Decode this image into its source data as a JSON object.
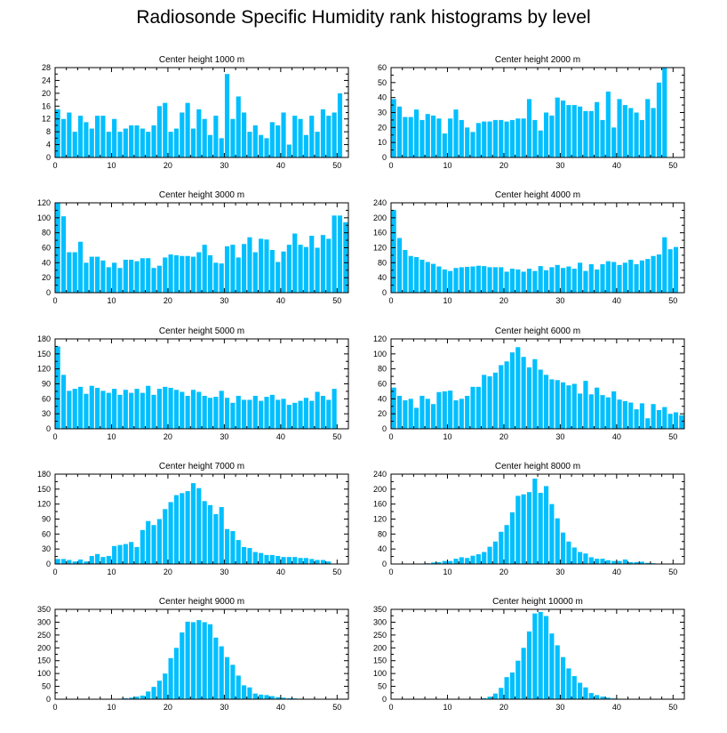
{
  "title": "Radiosonde Specific Humidity rank histograms by level",
  "colors": {
    "bar": "#00bfff",
    "axis": "#000000"
  },
  "chart_data": [
    {
      "type": "bar",
      "title": "Center height 1000 m",
      "xlim": [
        0,
        52
      ],
      "ylim": [
        0,
        28
      ],
      "xticks": [
        0,
        10,
        20,
        30,
        40,
        50
      ],
      "yticks": [
        0,
        4,
        8,
        12,
        16,
        20,
        24,
        28
      ],
      "values": [
        15,
        12,
        14,
        8,
        13,
        11,
        9,
        13,
        13,
        8,
        12,
        8,
        9,
        10,
        10,
        9,
        8,
        10,
        16,
        17,
        8,
        9,
        14,
        17,
        9,
        15,
        12,
        7,
        13,
        6,
        26,
        12,
        19,
        14,
        8,
        10,
        7,
        6,
        11,
        10,
        14,
        4,
        13,
        12,
        7,
        13,
        8,
        15,
        13,
        14,
        20
      ]
    },
    {
      "type": "bar",
      "title": "Center height 2000 m",
      "xlim": [
        0,
        52
      ],
      "ylim": [
        0,
        60
      ],
      "xticks": [
        0,
        10,
        20,
        30,
        40,
        50
      ],
      "yticks": [
        0,
        10,
        20,
        30,
        40,
        50,
        60
      ],
      "values": [
        39,
        34,
        27,
        27,
        32,
        25,
        29,
        28,
        26,
        16,
        26,
        32,
        25,
        20,
        17,
        23,
        24,
        24,
        25,
        25,
        24,
        25,
        26,
        26,
        39,
        25,
        18,
        30,
        28,
        40,
        38,
        35,
        35,
        34,
        31,
        31,
        37,
        25,
        44,
        20,
        39,
        35,
        33,
        30,
        25,
        39,
        33,
        50,
        60
      ]
    },
    {
      "type": "bar",
      "title": "Center height 3000 m",
      "xlim": [
        0,
        52
      ],
      "ylim": [
        0,
        120
      ],
      "xticks": [
        0,
        10,
        20,
        30,
        40,
        50
      ],
      "yticks": [
        0,
        20,
        40,
        60,
        80,
        100,
        120
      ],
      "values": [
        120,
        102,
        54,
        54,
        68,
        40,
        48,
        48,
        43,
        34,
        40,
        33,
        44,
        44,
        42,
        46,
        46,
        33,
        36,
        47,
        51,
        50,
        49,
        49,
        48,
        54,
        64,
        50,
        40,
        39,
        62,
        64,
        47,
        65,
        74,
        54,
        72,
        71,
        57,
        41,
        55,
        64,
        79,
        64,
        61,
        76,
        60,
        77,
        72,
        103,
        103,
        94
      ]
    },
    {
      "type": "bar",
      "title": "Center height 4000 m",
      "xlim": [
        0,
        52
      ],
      "ylim": [
        0,
        240
      ],
      "xticks": [
        0,
        10,
        20,
        30,
        40,
        50
      ],
      "yticks": [
        0,
        40,
        80,
        120,
        160,
        200,
        240
      ],
      "values": [
        221,
        146,
        114,
        98,
        95,
        88,
        82,
        77,
        70,
        62,
        58,
        66,
        68,
        69,
        70,
        72,
        71,
        68,
        68,
        68,
        56,
        64,
        62,
        56,
        64,
        58,
        71,
        60,
        68,
        74,
        66,
        70,
        64,
        80,
        58,
        76,
        62,
        76,
        84,
        82,
        74,
        80,
        88,
        76,
        86,
        90,
        98,
        102,
        148,
        116,
        122
      ]
    },
    {
      "type": "bar",
      "title": "Center height 5000 m",
      "xlim": [
        0,
        52
      ],
      "ylim": [
        0,
        180
      ],
      "xticks": [
        0,
        10,
        20,
        30,
        40,
        50
      ],
      "yticks": [
        0,
        30,
        60,
        90,
        120,
        150,
        180
      ],
      "values": [
        165,
        108,
        76,
        80,
        84,
        70,
        86,
        82,
        76,
        72,
        80,
        68,
        78,
        72,
        80,
        72,
        86,
        68,
        80,
        84,
        82,
        78,
        74,
        66,
        78,
        74,
        66,
        62,
        64,
        76,
        62,
        52,
        66,
        58,
        58,
        66,
        56,
        64,
        68,
        58,
        60,
        48,
        52,
        56,
        62,
        56,
        74,
        66,
        58,
        80
      ]
    },
    {
      "type": "bar",
      "title": "Center height 6000 m",
      "xlim": [
        0,
        52
      ],
      "ylim": [
        0,
        120
      ],
      "xticks": [
        0,
        10,
        20,
        30,
        40,
        50
      ],
      "yticks": [
        0,
        20,
        40,
        60,
        80,
        100,
        120
      ],
      "values": [
        55,
        44,
        38,
        40,
        28,
        44,
        40,
        33,
        49,
        50,
        51,
        38,
        40,
        44,
        56,
        56,
        72,
        70,
        75,
        85,
        90,
        102,
        109,
        96,
        82,
        93,
        79,
        72,
        66,
        65,
        62,
        58,
        60,
        47,
        64,
        46,
        55,
        45,
        42,
        50,
        39,
        37,
        35,
        26,
        34,
        14,
        33,
        25,
        29,
        20,
        22,
        18
      ]
    },
    {
      "type": "bar",
      "title": "Center height 7000 m",
      "xlim": [
        0,
        52
      ],
      "ylim": [
        0,
        180
      ],
      "xticks": [
        0,
        10,
        20,
        30,
        40,
        50
      ],
      "yticks": [
        0,
        30,
        60,
        90,
        120,
        150,
        180
      ],
      "values": [
        10,
        10,
        8,
        5,
        9,
        5,
        16,
        20,
        14,
        16,
        36,
        38,
        40,
        44,
        34,
        68,
        86,
        78,
        90,
        110,
        124,
        138,
        142,
        146,
        162,
        152,
        126,
        118,
        100,
        114,
        70,
        66,
        48,
        34,
        32,
        24,
        22,
        18,
        18,
        16,
        14,
        14,
        14,
        12,
        12,
        10,
        8,
        8,
        5
      ]
    },
    {
      "type": "bar",
      "title": "Center height 8000 m",
      "xlim": [
        0,
        52
      ],
      "ylim": [
        0,
        240
      ],
      "xticks": [
        0,
        10,
        20,
        30,
        40,
        50
      ],
      "yticks": [
        0,
        40,
        80,
        120,
        160,
        200,
        240
      ],
      "values": [
        0,
        0,
        0,
        0,
        0,
        1,
        2,
        4,
        5,
        8,
        8,
        14,
        18,
        16,
        22,
        26,
        32,
        46,
        60,
        86,
        104,
        138,
        182,
        186,
        192,
        228,
        190,
        208,
        160,
        122,
        84,
        60,
        44,
        32,
        28,
        18,
        14,
        14,
        10,
        8,
        8,
        12,
        5,
        5,
        6,
        3,
        2
      ]
    },
    {
      "type": "bar",
      "title": "Center height 9000 m",
      "xlim": [
        0,
        52
      ],
      "ylim": [
        0,
        350
      ],
      "xticks": [
        0,
        10,
        20,
        30,
        40,
        50
      ],
      "yticks": [
        0,
        50,
        100,
        150,
        200,
        250,
        300,
        350
      ],
      "values": [
        0,
        0,
        0,
        0,
        0,
        0,
        0,
        0,
        0,
        0,
        0,
        2,
        4,
        6,
        10,
        14,
        30,
        48,
        72,
        100,
        160,
        200,
        260,
        302,
        300,
        308,
        300,
        292,
        240,
        206,
        164,
        134,
        92,
        54,
        46,
        22,
        18,
        16,
        12,
        8,
        6,
        4,
        3,
        2
      ]
    },
    {
      "type": "bar",
      "title": "Center height 10000 m",
      "xlim": [
        0,
        52
      ],
      "ylim": [
        0,
        350
      ],
      "xticks": [
        0,
        10,
        20,
        30,
        40,
        50
      ],
      "yticks": [
        0,
        50,
        100,
        150,
        200,
        250,
        300,
        350
      ],
      "values": [
        0,
        0,
        0,
        0,
        0,
        0,
        0,
        0,
        0,
        0,
        0,
        0,
        0,
        0,
        0,
        1,
        4,
        10,
        22,
        44,
        86,
        104,
        150,
        200,
        264,
        334,
        340,
        324,
        256,
        210,
        164,
        120,
        90,
        64,
        46,
        24,
        16,
        10,
        6,
        3,
        2,
        1
      ]
    }
  ]
}
